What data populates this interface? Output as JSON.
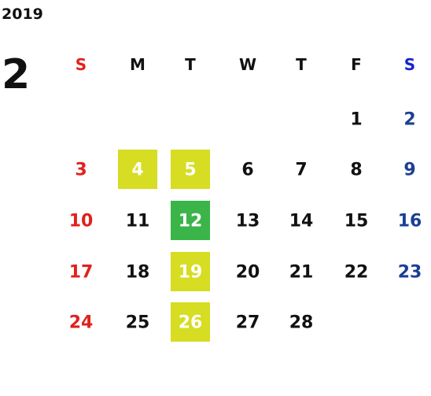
{
  "header": {
    "year": "2019",
    "month": "2"
  },
  "weekdays": [
    "S",
    "M",
    "T",
    "W",
    "T",
    "F",
    "S"
  ],
  "weeks": [
    [
      null,
      null,
      null,
      null,
      null,
      {
        "day": 1
      },
      {
        "day": 2
      }
    ],
    [
      {
        "day": 3
      },
      {
        "day": 4,
        "highlight": "#d6dd22"
      },
      {
        "day": 5,
        "highlight": "#d6dd22"
      },
      {
        "day": 6
      },
      {
        "day": 7
      },
      {
        "day": 8
      },
      {
        "day": 9
      }
    ],
    [
      {
        "day": 10
      },
      {
        "day": 11
      },
      {
        "day": 12,
        "highlight": "#3bb54a"
      },
      {
        "day": 13
      },
      {
        "day": 14
      },
      {
        "day": 15
      },
      {
        "day": 16
      }
    ],
    [
      {
        "day": 17
      },
      {
        "day": 18
      },
      {
        "day": 19,
        "highlight": "#d6dd22"
      },
      {
        "day": 20
      },
      {
        "day": 21
      },
      {
        "day": 22
      },
      {
        "day": 23
      }
    ],
    [
      {
        "day": 24
      },
      {
        "day": 25
      },
      {
        "day": 26,
        "highlight": "#d6dd22"
      },
      {
        "day": 27
      },
      {
        "day": 28
      },
      null,
      null
    ]
  ]
}
